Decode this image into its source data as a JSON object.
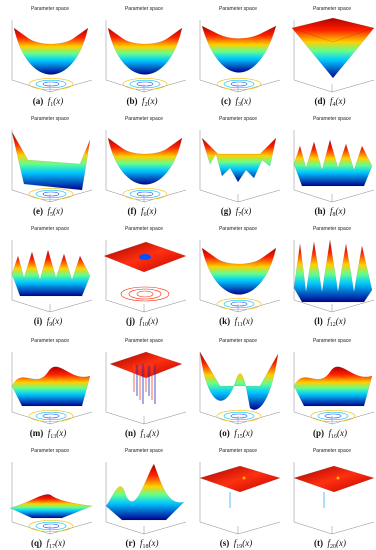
{
  "panels": [
    {
      "title": "Parameter space",
      "label": "(a)",
      "func": "f",
      "sub": "1",
      "arg": "(x)"
    },
    {
      "title": "Parameter space",
      "label": "(b)",
      "func": "f",
      "sub": "2",
      "arg": "(x)"
    },
    {
      "title": "Parameter space",
      "label": "(c)",
      "func": "f",
      "sub": "3",
      "arg": "(x)"
    },
    {
      "title": "Parameter space",
      "label": "(d)",
      "func": "f",
      "sub": "4",
      "arg": "(x)"
    },
    {
      "title": "Parameter space",
      "label": "(e)",
      "func": "f",
      "sub": "5",
      "arg": "(x)"
    },
    {
      "title": "Parameter space",
      "label": "(f)",
      "func": "f",
      "sub": "6",
      "arg": "(x)"
    },
    {
      "title": "Parameter space",
      "label": "(g)",
      "func": "f",
      "sub": "7",
      "arg": "(x)"
    },
    {
      "title": "Parameter space",
      "label": "(h)",
      "func": "f",
      "sub": "8",
      "arg": "(x)"
    },
    {
      "title": "Parameter space",
      "label": "(i)",
      "func": "f",
      "sub": "9",
      "arg": "(x)"
    },
    {
      "title": "Parameter space",
      "label": "(j)",
      "func": "f",
      "sub": "10",
      "arg": "(x)"
    },
    {
      "title": "Parameter space",
      "label": "(k)",
      "func": "f",
      "sub": "11",
      "arg": "(x)"
    },
    {
      "title": "Parameter space",
      "label": "(l)",
      "func": "f",
      "sub": "12",
      "arg": "(x)"
    },
    {
      "title": "Parameter space",
      "label": "(m)",
      "func": "f",
      "sub": "13",
      "arg": "(x)"
    },
    {
      "title": "Parameter space",
      "label": "(n)",
      "func": "f",
      "sub": "14",
      "arg": "(x)"
    },
    {
      "title": "Parameter space",
      "label": "(o)",
      "func": "f",
      "sub": "15",
      "arg": "(x)"
    },
    {
      "title": "Parameter space",
      "label": "(p)",
      "func": "f",
      "sub": "16",
      "arg": "(x)"
    },
    {
      "title": "Parameter space",
      "label": "(q)",
      "func": "f",
      "sub": "17",
      "arg": "(x)"
    },
    {
      "title": "Parameter space",
      "label": "(r)",
      "func": "f",
      "sub": "18",
      "arg": "(x)"
    },
    {
      "title": "Parameter space",
      "label": "(s)",
      "func": "f",
      "sub": "19",
      "arg": "(x)"
    },
    {
      "title": "Parameter space",
      "label": "(t)",
      "func": "f",
      "sub": "20",
      "arg": "(x)"
    }
  ]
}
